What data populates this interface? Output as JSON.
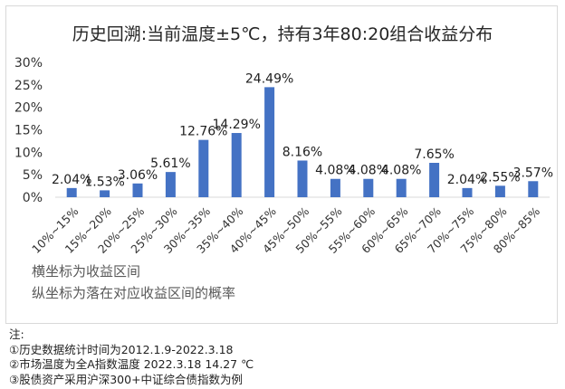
{
  "chart_data": {
    "type": "bar",
    "title": "历史回溯:当前温度±5℃，持有3年80:20组合收益分布",
    "categories": [
      "10%~15%",
      "15%~20%",
      "20%~25%",
      "25%~30%",
      "30%~35%",
      "35%~40%",
      "40%~45%",
      "45%~50%",
      "50%~55%",
      "55%~60%",
      "60%~65%",
      "65%~70%",
      "70%~75%",
      "75%~80%",
      "80%~85%"
    ],
    "values": [
      2.04,
      1.53,
      3.06,
      5.61,
      12.76,
      14.29,
      24.49,
      8.16,
      4.08,
      4.08,
      4.08,
      7.65,
      2.04,
      2.55,
      3.57
    ],
    "data_labels": [
      "2.04%",
      "1.53%",
      "3.06%",
      "5.61%",
      "12.76%",
      "14.29%",
      "24.49%",
      "8.16%",
      "4.08%",
      "4.08%",
      "4.08%",
      "7.65%",
      "2.04%",
      "2.55%",
      "3.57%"
    ],
    "yticks": [
      "0%",
      "5%",
      "10%",
      "15%",
      "20%",
      "25%",
      "30%"
    ],
    "ylim": [
      0,
      30
    ],
    "bar_color": "#4472c4",
    "grid": false,
    "annotations": [
      "横坐标为收益区间",
      "纵坐标为落在对应收益区间的概率"
    ]
  },
  "notes": {
    "heading": "注:",
    "items": [
      "①历史数据统计时间为2012.1.9-2022.3.18",
      "②市场温度为全A指数温度 2022.3.18    14.27 ℃",
      "③股债资产采用沪深300+中证综合债指数为例"
    ]
  }
}
